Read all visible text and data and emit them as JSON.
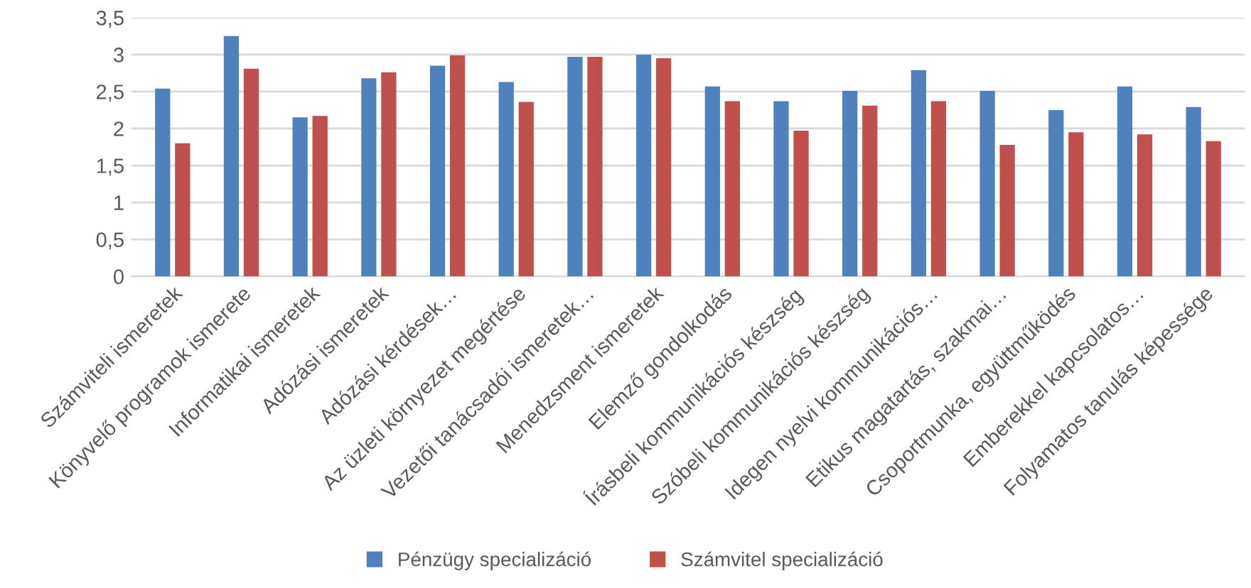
{
  "chart_data": {
    "type": "bar",
    "categories": [
      "Számviteli ismeretek",
      "Könyvelő programok ismerete",
      "Informatikai ismeretek",
      "Adózási ismeretek",
      "Adózási kérdések…",
      "Az üzleti környezet megértése",
      "Vezetői tanácsadói ismeretek…",
      "Menedzsment ismeretek",
      "Elemző gondolkodás",
      "Írásbeli kommunikációs készség",
      "Szóbeli kommunikációs készség",
      "Idegen nyelvi kommunikációs…",
      "Etikus magatartás, szakmai…",
      "Csoportmunka, együttműködés",
      "Emberekkel kapcsolatos…",
      "Folyamatos tanulás képessége"
    ],
    "series": [
      {
        "name": "Pénzügy specializáció",
        "color": "#4f81bd",
        "values": [
          2.54,
          3.25,
          2.15,
          2.68,
          2.85,
          2.63,
          2.97,
          3.0,
          2.57,
          2.37,
          2.51,
          2.79,
          2.51,
          2.25,
          2.57,
          2.29
        ]
      },
      {
        "name": "Számvitel specializáció",
        "color": "#c0504d",
        "values": [
          1.8,
          2.81,
          2.17,
          2.76,
          2.99,
          2.36,
          2.97,
          2.95,
          2.37,
          1.97,
          2.31,
          2.37,
          1.78,
          1.95,
          1.92,
          1.83
        ]
      }
    ],
    "ylim": [
      0,
      3.5
    ],
    "yticks": [
      0,
      {
        "value": 0.5,
        "label": "0,5"
      },
      1,
      {
        "value": 1.5,
        "label": "1,5"
      },
      2,
      {
        "value": 2.5,
        "label": "2,5"
      },
      3,
      {
        "value": 3.5,
        "label": "3,5"
      }
    ],
    "grid": "y",
    "legend": "bottom"
  }
}
